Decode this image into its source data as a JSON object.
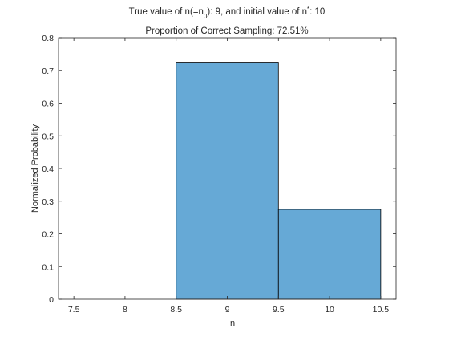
{
  "chart_data": {
    "type": "bar",
    "title_line1_a": "True value of n(=n",
    "title_line1_sub": "0",
    "title_line1_b": "): 9, and initial value of n",
    "title_line1_sup": "*",
    "title_line1_c": ": 10",
    "title_line2": "Proportion of Correct Sampling: 72.51%",
    "xlabel": "n",
    "ylabel": "Normalized Probability",
    "xlim": [
      7.35,
      10.65
    ],
    "ylim": [
      0,
      0.8
    ],
    "xticks": [
      7.5,
      8,
      8.5,
      9,
      9.5,
      10,
      10.5
    ],
    "xtick_labels": [
      "7.5",
      "8",
      "8.5",
      "9",
      "9.5",
      "10",
      "10.5"
    ],
    "yticks": [
      0,
      0.1,
      0.2,
      0.3,
      0.4,
      0.5,
      0.6,
      0.7,
      0.8
    ],
    "ytick_labels": [
      "0",
      "0.1",
      "0.2",
      "0.3",
      "0.4",
      "0.5",
      "0.6",
      "0.7",
      "0.8"
    ],
    "bins": [
      {
        "left": 8.5,
        "right": 9.5,
        "value": 0.7251
      },
      {
        "left": 9.5,
        "right": 10.5,
        "value": 0.2749
      }
    ],
    "bar_color": "#66a9d6",
    "bar_edge_color": "#000000",
    "grid": false
  }
}
